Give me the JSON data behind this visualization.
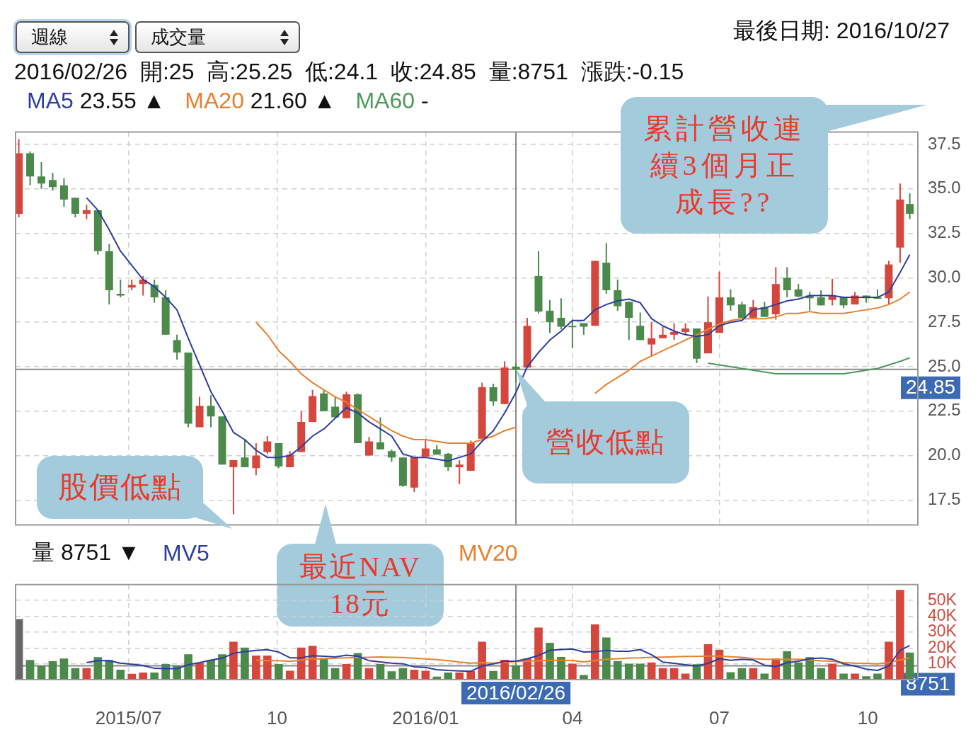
{
  "chart_data": [
    {
      "type": "candlestick",
      "title": "最後日期: 2016/10/27",
      "subtitle": "2016/02/26  開:25  高:25.25  低:24.1  收:24.85  量:8751  漲跌:-0.15",
      "x": [
        "2015-04-24",
        "2015-05-01",
        "2015-05-08",
        "2015-05-15",
        "2015-05-22",
        "2015-05-29",
        "2015-06-05",
        "2015-06-12",
        "2015-06-19",
        "2015-06-26",
        "2015-07-03",
        "2015-07-10",
        "2015-07-17",
        "2015-07-24",
        "2015-07-31",
        "2015-08-07",
        "2015-08-14",
        "2015-08-21",
        "2015-08-28",
        "2015-09-04",
        "2015-09-11",
        "2015-09-18",
        "2015-09-25",
        "2015-10-02",
        "2015-10-09",
        "2015-10-16",
        "2015-10-23",
        "2015-10-30",
        "2015-11-06",
        "2015-11-13",
        "2015-11-20",
        "2015-11-27",
        "2015-12-04",
        "2015-12-11",
        "2015-12-18",
        "2015-12-25",
        "2016-01-01",
        "2016-01-08",
        "2016-01-15",
        "2016-01-22",
        "2016-01-29",
        "2016-02-05",
        "2016-02-12",
        "2016-02-19",
        "2016-02-26",
        "2016-03-04",
        "2016-03-11",
        "2016-03-18",
        "2016-03-25",
        "2016-04-01",
        "2016-04-08",
        "2016-04-15",
        "2016-04-22",
        "2016-04-29",
        "2016-05-06",
        "2016-05-13",
        "2016-05-20",
        "2016-05-27",
        "2016-06-03",
        "2016-06-10",
        "2016-06-17",
        "2016-06-24",
        "2016-07-01",
        "2016-07-08",
        "2016-07-15",
        "2016-07-22",
        "2016-07-29",
        "2016-08-05",
        "2016-08-12",
        "2016-08-19",
        "2016-08-26",
        "2016-09-02",
        "2016-09-09",
        "2016-09-16",
        "2016-09-23",
        "2016-09-30",
        "2016-10-07",
        "2016-10-14",
        "2016-10-21",
        "2016-10-27"
      ],
      "ohlc": [
        [
          33.6,
          37.8,
          33.4,
          37.0
        ],
        [
          37.0,
          37.1,
          35.2,
          35.7
        ],
        [
          35.7,
          36.5,
          35.0,
          35.3
        ],
        [
          35.5,
          35.9,
          34.9,
          35.1
        ],
        [
          35.2,
          35.6,
          34.0,
          34.4
        ],
        [
          34.5,
          34.5,
          33.4,
          33.6
        ],
        [
          33.6,
          34.1,
          33.3,
          33.8
        ],
        [
          33.8,
          33.8,
          31.3,
          31.5
        ],
        [
          31.5,
          31.9,
          28.5,
          29.3
        ],
        [
          29.1,
          29.9,
          28.9,
          29.0
        ],
        [
          29.45,
          29.9,
          29.3,
          29.6
        ],
        [
          29.65,
          30.1,
          29.0,
          29.9
        ],
        [
          29.6,
          29.9,
          28.6,
          28.9
        ],
        [
          28.9,
          29.3,
          26.8,
          26.8
        ],
        [
          26.5,
          26.8,
          25.4,
          25.8
        ],
        [
          25.8,
          25.8,
          21.6,
          21.8
        ],
        [
          21.6,
          23.3,
          21.6,
          22.8
        ],
        [
          22.8,
          23.4,
          21.6,
          22.2
        ],
        [
          22.2,
          22.2,
          19.5,
          19.5
        ],
        [
          19.35,
          19.75,
          16.7,
          19.75
        ],
        [
          19.9,
          20.9,
          19.35,
          19.35
        ],
        [
          19.3,
          20.7,
          18.9,
          20.0
        ],
        [
          20.2,
          21.1,
          20.1,
          20.8
        ],
        [
          20.7,
          20.7,
          19.3,
          19.4
        ],
        [
          19.35,
          20.25,
          19.35,
          20.05
        ],
        [
          20.2,
          22.5,
          20.2,
          21.9
        ],
        [
          21.9,
          23.7,
          21.9,
          23.35
        ],
        [
          23.5,
          23.7,
          22.5,
          22.5
        ],
        [
          22.75,
          23.3,
          22.1,
          22.15
        ],
        [
          22.1,
          23.6,
          22.1,
          23.45
        ],
        [
          23.45,
          23.5,
          20.7,
          20.7
        ],
        [
          20.0,
          21.05,
          20.0,
          20.8
        ],
        [
          20.75,
          22.15,
          20.35,
          20.35
        ],
        [
          20.25,
          20.35,
          19.65,
          19.9
        ],
        [
          19.9,
          19.9,
          18.25,
          18.3
        ],
        [
          18.2,
          19.95,
          17.95,
          19.95
        ],
        [
          19.95,
          20.85,
          19.95,
          20.4
        ],
        [
          20.35,
          20.6,
          20.05,
          20.05
        ],
        [
          20.1,
          20.15,
          19.15,
          19.35
        ],
        [
          19.35,
          19.75,
          18.4,
          19.5
        ],
        [
          19.15,
          20.85,
          19.15,
          20.7
        ],
        [
          20.95,
          24.1,
          20.95,
          23.85
        ],
        [
          23.85,
          24.05,
          22.8,
          23.05
        ],
        [
          22.9,
          25.3,
          22.9,
          24.95
        ],
        [
          25,
          25.25,
          24.1,
          24.85
        ],
        [
          24.95,
          27.75,
          24.95,
          27.3
        ],
        [
          30.1,
          31.5,
          28.0,
          28.1
        ],
        [
          28.15,
          28.75,
          26.9,
          27.5
        ],
        [
          27.75,
          28.85,
          27.1,
          27.25
        ],
        [
          27.3,
          27.65,
          26.05,
          27.25
        ],
        [
          27.45,
          27.45,
          26.8,
          27.25
        ],
        [
          27.3,
          30.95,
          27.3,
          30.95
        ],
        [
          30.85,
          31.95,
          29.1,
          29.3
        ],
        [
          29.3,
          29.9,
          28.15,
          28.4
        ],
        [
          28.65,
          28.65,
          26.5,
          27.75
        ],
        [
          27.3,
          28.05,
          26.5,
          26.5
        ],
        [
          26.25,
          27.5,
          25.6,
          26.6
        ],
        [
          26.6,
          27.25,
          26.6,
          26.8
        ],
        [
          26.8,
          27.45,
          26.5,
          26.95
        ],
        [
          26.95,
          27.45,
          26.8,
          27.15
        ],
        [
          27.15,
          27.15,
          25.2,
          25.45
        ],
        [
          25.75,
          28.95,
          25.75,
          27.5
        ],
        [
          26.9,
          30.35,
          26.9,
          28.9
        ],
        [
          28.9,
          29.35,
          28.15,
          28.45
        ],
        [
          28.5,
          28.65,
          27.75,
          27.75
        ],
        [
          27.75,
          28.75,
          27.75,
          28.35
        ],
        [
          28.35,
          28.65,
          27.8,
          27.8
        ],
        [
          27.95,
          30.6,
          27.65,
          29.65
        ],
        [
          30.0,
          30.6,
          28.9,
          29.3
        ],
        [
          29.35,
          29.65,
          28.9,
          28.95
        ],
        [
          29.0,
          29.2,
          28.15,
          28.85
        ],
        [
          28.9,
          29.3,
          28.45,
          28.45
        ],
        [
          28.75,
          29.95,
          28.45,
          29.0
        ],
        [
          28.9,
          28.95,
          28.3,
          28.45
        ],
        [
          28.5,
          29.2,
          28.5,
          29.0
        ],
        [
          29.0,
          29.0,
          28.6,
          28.85
        ],
        [
          28.9,
          29.35,
          28.85,
          28.85
        ],
        [
          28.85,
          30.95,
          28.5,
          30.75
        ],
        [
          31.7,
          35.3,
          30.85,
          34.4
        ],
        [
          34.15,
          34.75,
          33.3,
          33.6
        ]
      ],
      "colors": [
        "#d5473d",
        "#4b8a4b",
        "#4b8a4b",
        "#4b8a4b",
        "#4b8a4b",
        "#4b8a4b",
        "#d5473d",
        "#4b8a4b",
        "#4b8a4b",
        "#4b8a4b",
        "#d5473d",
        "#d5473d",
        "#4b8a4b",
        "#4b8a4b",
        "#4b8a4b",
        "#4b8a4b",
        "#d5473d",
        "#4b8a4b",
        "#4b8a4b",
        "#d5473d",
        "#4b8a4b",
        "#d5473d",
        "#d5473d",
        "#4b8a4b",
        "#d5473d",
        "#d5473d",
        "#d5473d",
        "#4b8a4b",
        "#4b8a4b",
        "#d5473d",
        "#4b8a4b",
        "#d5473d",
        "#4b8a4b",
        "#4b8a4b",
        "#4b8a4b",
        "#d5473d",
        "#d5473d",
        "#4b8a4b",
        "#4b8a4b",
        "#d5473d",
        "#d5473d",
        "#d5473d",
        "#4b8a4b",
        "#d5473d",
        "#4b8a4b",
        "#d5473d",
        "#4b8a4b",
        "#4b8a4b",
        "#4b8a4b",
        "#4b8a4b",
        "#4b8a4b",
        "#d5473d",
        "#4b8a4b",
        "#4b8a4b",
        "#4b8a4b",
        "#4b8a4b",
        "#d5473d",
        "#d5473d",
        "#d5473d",
        "#d5473d",
        "#4b8a4b",
        "#d5473d",
        "#d5473d",
        "#4b8a4b",
        "#4b8a4b",
        "#d5473d",
        "#4b8a4b",
        "#d5473d",
        "#4b8a4b",
        "#4b8a4b",
        "#4b8a4b",
        "#4b8a4b",
        "#d5473d",
        "#4b8a4b",
        "#d5473d",
        "#4b8a4b",
        "#4b8a4b",
        "#d5473d",
        "#d5473d",
        "#4b8a4b"
      ],
      "series": [
        {
          "name": "MA5 23.55 ▲",
          "type": "line",
          "color": "#2c3e9e",
          "values": [
            null,
            null,
            null,
            null,
            null,
            null,
            34.5,
            33.8,
            32.7,
            31.5,
            30.7,
            29.9,
            29.5,
            28.9,
            28.2,
            26.6,
            25.1,
            23.6,
            22.5,
            21.3,
            20.9,
            20.3,
            19.9,
            19.9,
            20.0,
            20.5,
            21.1,
            21.5,
            22.1,
            22.7,
            22.4,
            21.9,
            21.5,
            21.1,
            20.1,
            19.9,
            19.9,
            19.8,
            19.7,
            19.9,
            20.1,
            20.8,
            21.4,
            22.4,
            23.55,
            25.0,
            25.8,
            26.5,
            27.0,
            27.6,
            27.6,
            28.2,
            28.5,
            28.7,
            28.8,
            28.6,
            27.7,
            27.3,
            27.0,
            26.8,
            26.7,
            26.8,
            27.3,
            27.5,
            27.6,
            28.2,
            28.3,
            28.5,
            28.7,
            28.8,
            29.0,
            29.0,
            29.0,
            28.9,
            28.9,
            28.9,
            28.9,
            29.2,
            30.3,
            31.3
          ]
        },
        {
          "name": "MA20 21.60 ▲",
          "type": "line",
          "color": "#e8802e",
          "values": [
            null,
            null,
            null,
            null,
            null,
            null,
            null,
            null,
            null,
            null,
            null,
            null,
            null,
            null,
            null,
            null,
            null,
            null,
            null,
            null,
            null,
            27.5,
            26.8,
            25.9,
            25.3,
            24.6,
            24.1,
            23.7,
            23.3,
            23.0,
            22.6,
            22.2,
            21.8,
            21.4,
            21.1,
            20.9,
            20.9,
            20.8,
            20.7,
            20.7,
            20.7,
            20.9,
            21.1,
            21.4,
            21.6,
            null,
            null,
            null,
            null,
            null,
            null,
            23.5,
            24.0,
            24.4,
            24.8,
            25.3,
            25.6,
            25.9,
            26.2,
            26.5,
            26.8,
            27.1,
            27.4,
            27.6,
            27.7,
            27.7,
            27.7,
            27.8,
            28.0,
            28.0,
            28.1,
            28.0,
            28.0,
            28.0,
            28.1,
            28.2,
            28.3,
            28.5,
            28.8,
            29.2
          ]
        },
        {
          "name": "MA60 -",
          "type": "line",
          "color": "#4e9a5c",
          "values": [
            null,
            null,
            null,
            null,
            null,
            null,
            null,
            null,
            null,
            null,
            null,
            null,
            null,
            null,
            null,
            null,
            null,
            null,
            null,
            null,
            null,
            null,
            null,
            null,
            null,
            null,
            null,
            null,
            null,
            null,
            null,
            null,
            null,
            null,
            null,
            null,
            null,
            null,
            null,
            null,
            null,
            null,
            null,
            null,
            null,
            null,
            null,
            null,
            null,
            null,
            null,
            null,
            null,
            null,
            null,
            null,
            null,
            null,
            null,
            null,
            null,
            25.2,
            25.1,
            25.0,
            24.9,
            24.8,
            24.7,
            24.6,
            24.6,
            24.6,
            24.6,
            24.6,
            24.6,
            24.6,
            24.7,
            24.8,
            24.9,
            25.1,
            25.3,
            25.5
          ]
        }
      ],
      "xlim": [
        "2015-04-22",
        "2016-11-01"
      ],
      "xticks": [
        {
          "value": "2015-07-01",
          "label": null
        },
        {
          "value": "2015-10-01",
          "label": null
        },
        {
          "value": "2016-01-01",
          "label": null
        },
        {
          "value": "2016-04-01",
          "label": null
        },
        {
          "value": "2016-07-01",
          "label": null
        },
        {
          "value": "2016-10-01",
          "label": null
        }
      ],
      "ylim": [
        16.1,
        38.2
      ],
      "yticks": [
        17.5,
        {
          "value": 20,
          "label": "20.0"
        },
        22.5,
        {
          "value": 25,
          "label": "25.0"
        },
        27.5,
        {
          "value": 30,
          "label": "30.0"
        },
        32.5,
        {
          "value": 35,
          "label": "35.0"
        },
        37.5
      ],
      "tick_labels": "y",
      "grid": true,
      "legend": "top left",
      "ref_lines": [
        {
          "axis": "x",
          "value": "2016-02-26"
        },
        {
          "axis": "y",
          "value": 24.85,
          "label": "24.85"
        }
      ],
      "annotations": [
        "週線",
        "成交量",
        "股價低點",
        "最近NAV 18元",
        {
          "text": "營收低點",
          "x": "2016-02-26",
          "y": 24.85
        },
        "累計營收連續3個月正成長??"
      ]
    },
    {
      "type": "bar",
      "x": [
        "2015-04-24",
        "2015-05-01",
        "2015-05-08",
        "2015-05-15",
        "2015-05-22",
        "2015-05-29",
        "2015-06-05",
        "2015-06-12",
        "2015-06-19",
        "2015-06-26",
        "2015-07-03",
        "2015-07-10",
        "2015-07-17",
        "2015-07-24",
        "2015-07-31",
        "2015-08-07",
        "2015-08-14",
        "2015-08-21",
        "2015-08-28",
        "2015-09-04",
        "2015-09-11",
        "2015-09-18",
        "2015-09-25",
        "2015-10-02",
        "2015-10-09",
        "2015-10-16",
        "2015-10-23",
        "2015-10-30",
        "2015-11-06",
        "2015-11-13",
        "2015-11-20",
        "2015-11-27",
        "2015-12-04",
        "2015-12-11",
        "2015-12-18",
        "2015-12-25",
        "2016-01-01",
        "2016-01-08",
        "2016-01-15",
        "2016-01-22",
        "2016-01-29",
        "2016-02-05",
        "2016-02-12",
        "2016-02-19",
        "2016-02-26",
        "2016-03-04",
        "2016-03-11",
        "2016-03-18",
        "2016-03-25",
        "2016-04-01",
        "2016-04-08",
        "2016-04-15",
        "2016-04-22",
        "2016-04-29",
        "2016-05-06",
        "2016-05-13",
        "2016-05-20",
        "2016-05-27",
        "2016-06-03",
        "2016-06-10",
        "2016-06-17",
        "2016-06-24",
        "2016-07-01",
        "2016-07-08",
        "2016-07-15",
        "2016-07-22",
        "2016-07-29",
        "2016-08-05",
        "2016-08-12",
        "2016-08-19",
        "2016-08-26",
        "2016-09-02",
        "2016-09-09",
        "2016-09-16",
        "2016-09-23",
        "2016-09-30",
        "2016-10-07",
        "2016-10-14",
        "2016-10-21",
        "2016-10-27"
      ],
      "series": [
        {
          "name": "量 8751 ▼",
          "colors": [
            "#666666",
            "#4b8a4b",
            "#4b8a4b",
            "#4b8a4b",
            "#4b8a4b",
            "#4b8a4b",
            "#d5473d",
            "#4b8a4b",
            "#4b8a4b",
            "#4b8a4b",
            "#d5473d",
            "#d5473d",
            "#4b8a4b",
            "#4b8a4b",
            "#4b8a4b",
            "#4b8a4b",
            "#d5473d",
            "#4b8a4b",
            "#4b8a4b",
            "#d5473d",
            "#4b8a4b",
            "#d5473d",
            "#d5473d",
            "#4b8a4b",
            "#d5473d",
            "#d5473d",
            "#d5473d",
            "#4b8a4b",
            "#4b8a4b",
            "#d5473d",
            "#4b8a4b",
            "#d5473d",
            "#4b8a4b",
            "#4b8a4b",
            "#4b8a4b",
            "#d5473d",
            "#d5473d",
            "#4b8a4b",
            "#4b8a4b",
            "#d5473d",
            "#d5473d",
            "#d5473d",
            "#4b8a4b",
            "#d5473d",
            "#4b8a4b",
            "#d5473d",
            "#d5473d",
            "#4b8a4b",
            "#4b8a4b",
            "#d5473d",
            "#4b8a4b",
            "#d5473d",
            "#4b8a4b",
            "#4b8a4b",
            "#4b8a4b",
            "#4b8a4b",
            "#d5473d",
            "#d5473d",
            "#d5473d",
            "#d5473d",
            "#4b8a4b",
            "#d5473d",
            "#d5473d",
            "#4b8a4b",
            "#4b8a4b",
            "#d5473d",
            "#4b8a4b",
            "#d5473d",
            "#4b8a4b",
            "#4b8a4b",
            "#4b8a4b",
            "#4b8a4b",
            "#d5473d",
            "#4b8a4b",
            "#d5473d",
            "#4b8a4b",
            "#4b8a4b",
            "#d5473d",
            "#d5473d",
            "#4b8a4b"
          ],
          "values": [
            38100,
            12300,
            8500,
            11500,
            13100,
            7100,
            7100,
            14100,
            12300,
            6100,
            3500,
            4300,
            4300,
            9700,
            8600,
            15800,
            10400,
            12300,
            15800,
            23800,
            20100,
            15100,
            15100,
            9700,
            5400,
            20100,
            21200,
            13500,
            7100,
            9700,
            16600,
            7100,
            9700,
            5100,
            7100,
            6100,
            5400,
            1700,
            4300,
            4300,
            5300,
            23800,
            5300,
            12400,
            8751,
            13200,
            32700,
            23100,
            14200,
            9900,
            2800,
            34700,
            26500,
            11600,
            9900,
            9900,
            10700,
            7100,
            7100,
            3600,
            9600,
            22200,
            18700,
            4500,
            7100,
            7100,
            3600,
            13200,
            17700,
            10700,
            14100,
            7100,
            9900,
            3600,
            3600,
            2000,
            3600,
            23800,
            56500,
            16900
          ]
        },
        {
          "name": "MV5",
          "type": "line",
          "color": "#2c3e9e",
          "values": [
            null,
            null,
            null,
            null,
            null,
            null,
            10700,
            12000,
            12000,
            10400,
            9700,
            8900,
            7100,
            6900,
            6900,
            9400,
            10700,
            12300,
            13500,
            16600,
            17700,
            18400,
            18900,
            17400,
            13800,
            13800,
            15100,
            14800,
            14300,
            15400,
            14800,
            12000,
            11200,
            10400,
            10000,
            8100,
            7700,
            6300,
            5800,
            5500,
            5300,
            8600,
            9900,
            11600,
            11600,
            13200,
            15200,
            18500,
            19000,
            19300,
            17400,
            17700,
            18500,
            17900,
            17900,
            19000,
            15700,
            11100,
            10300,
            9400,
            8600,
            10300,
            13200,
            12200,
            12900,
            12400,
            9100,
            8300,
            10700,
            11600,
            13200,
            13600,
            12900,
            9900,
            8600,
            6600,
            5800,
            8600,
            18500,
            21500
          ]
        },
        {
          "name": "MV20",
          "type": "line",
          "color": "#e8802e",
          "values": [
            null,
            null,
            null,
            null,
            null,
            null,
            null,
            null,
            null,
            null,
            null,
            null,
            null,
            null,
            null,
            null,
            null,
            null,
            null,
            null,
            null,
            12300,
            12000,
            12000,
            11500,
            12300,
            13200,
            13100,
            13500,
            13800,
            14000,
            14100,
            14300,
            14100,
            14000,
            13500,
            13100,
            12600,
            12000,
            11100,
            10400,
            10700,
            10400,
            10900,
            11400,
            11600,
            11900,
            12200,
            12200,
            12100,
            11200,
            12100,
            12900,
            13200,
            13600,
            13700,
            14100,
            14200,
            14400,
            14600,
            14600,
            14900,
            14900,
            14400,
            14100,
            13200,
            12900,
            12700,
            12700,
            12900,
            12400,
            11900,
            11600,
            10700,
            10400,
            10300,
            9900,
            10700,
            12400,
            13600
          ]
        }
      ],
      "xlim": [
        "2015-04-22",
        "2016-11-01"
      ],
      "xticks": [
        {
          "value": "2015-07-01",
          "label": "2015/07"
        },
        {
          "value": "2015-10-01",
          "label": "10"
        },
        {
          "value": "2016-01-01",
          "label": "2016/01"
        },
        {
          "value": "2016-04-01",
          "label": "04"
        },
        {
          "value": "2016-07-01",
          "label": "07"
        },
        {
          "value": "2016-10-01",
          "label": "10"
        }
      ],
      "ylim": [
        0,
        60000
      ],
      "yticks": [
        {
          "value": 10000,
          "label": "10K"
        },
        {
          "value": 20000,
          "label": "20K"
        },
        {
          "value": 30000,
          "label": "30K"
        },
        {
          "value": 40000,
          "label": "40K"
        },
        {
          "value": 50000,
          "label": "50K"
        }
      ],
      "grid": true,
      "legend": "top left",
      "ref_lines": [
        {
          "axis": "x",
          "value": "2016-02-26",
          "label": "2016/02/26"
        },
        {
          "axis": "y",
          "value": 8751,
          "label": "8751"
        }
      ]
    }
  ]
}
